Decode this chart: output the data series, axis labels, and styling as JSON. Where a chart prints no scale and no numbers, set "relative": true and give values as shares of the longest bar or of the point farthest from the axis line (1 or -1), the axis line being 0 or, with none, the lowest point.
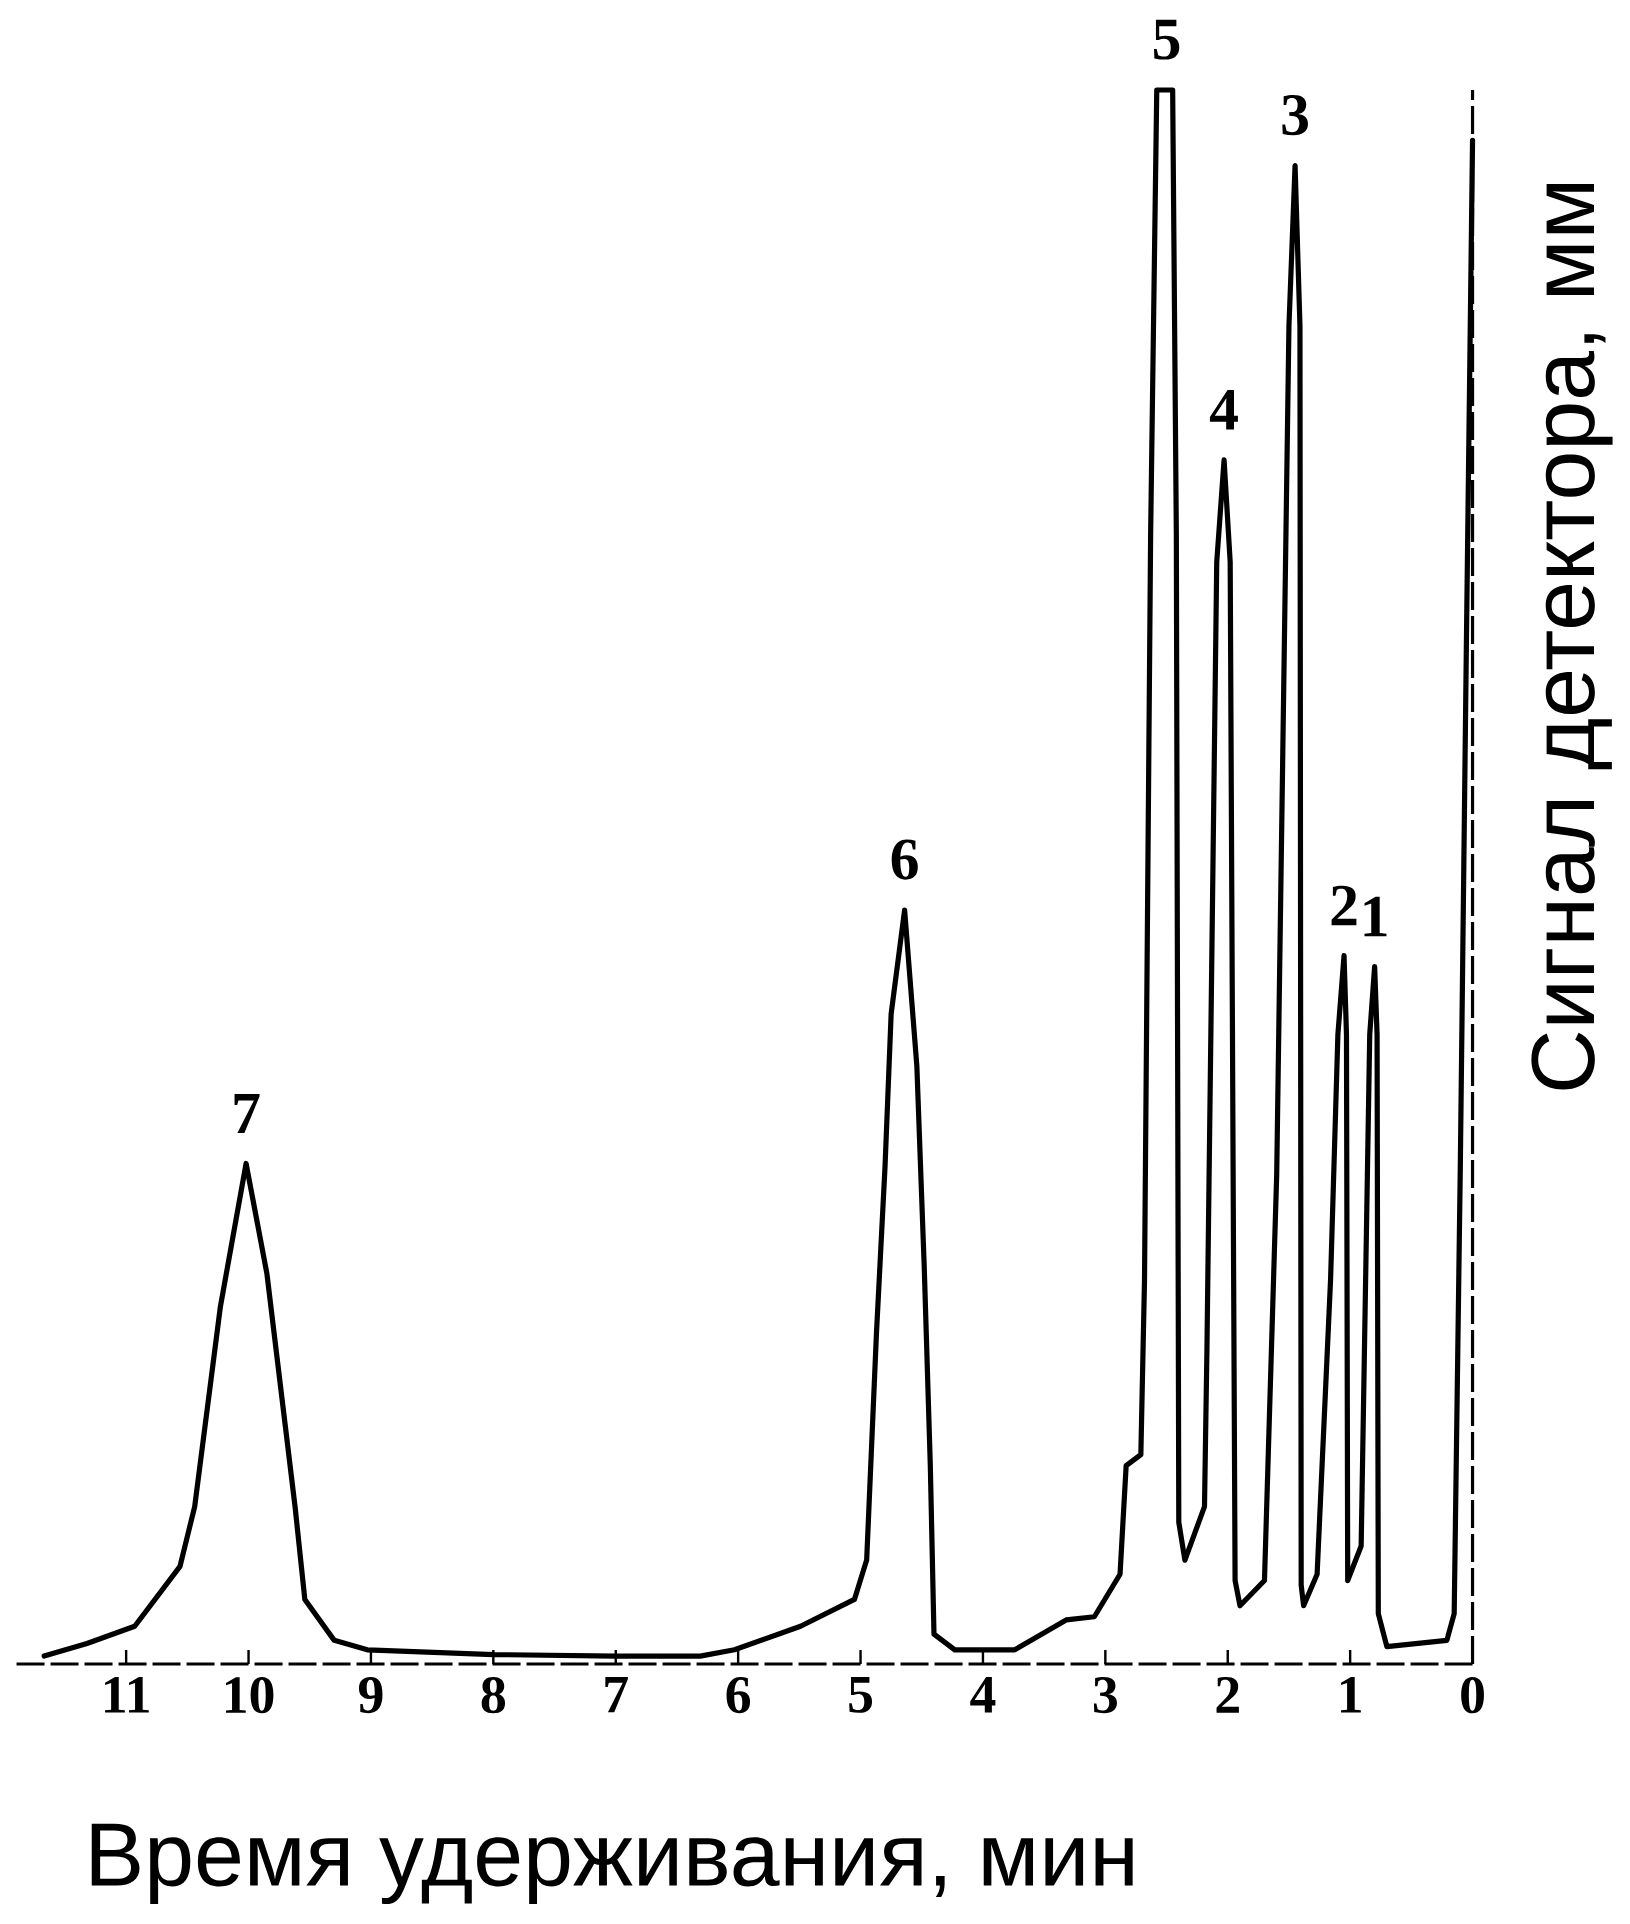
{
  "chart_data": {
    "type": "line",
    "xlabel": "Время удерживания, мин",
    "ylabel": "Сигнал детектора, мм",
    "relative": true,
    "color": "#000000",
    "line_style": "solid",
    "x": [
      11.67,
      11.32,
      10.93,
      10.56,
      10.44,
      10.23,
      10.02,
      9.85,
      9.62,
      9.54,
      9.3,
      9.03,
      8.0,
      7.0,
      6.31,
      6.03,
      5.49,
      5.05,
      4.95,
      4.87,
      4.8,
      4.75,
      4.64,
      4.54,
      4.48,
      4.43,
      4.4,
      4.23,
      3.74,
      3.32,
      3.09,
      2.88,
      2.83,
      2.71,
      2.68,
      2.63,
      2.58,
      2.45,
      2.42,
      2.4,
      2.35,
      2.19,
      2.17,
      2.09,
      2.03,
      1.98,
      1.94,
      1.9,
      1.7,
      1.6,
      1.5,
      1.45,
      1.41,
      1.4,
      1.38,
      1.27,
      1.16,
      1.1,
      1.05,
      1.03,
      1.02,
      0.91,
      0.84,
      0.8,
      0.78,
      0.77,
      0.7,
      0.21,
      0.15,
      0.1,
      0.05,
      0.0
    ],
    "values": [
      0.005,
      0.013,
      0.024,
      0.062,
      0.1,
      0.227,
      0.318,
      0.248,
      0.1,
      0.041,
      0.015,
      0.009,
      0.006,
      0.005,
      0.005,
      0.009,
      0.024,
      0.041,
      0.066,
      0.21,
      0.316,
      0.413,
      0.479,
      0.38,
      0.253,
      0.126,
      0.019,
      0.009,
      0.009,
      0.028,
      0.03,
      0.057,
      0.126,
      0.133,
      0.244,
      0.718,
      1.0,
      1.0,
      0.718,
      0.09,
      0.066,
      0.1,
      0.2,
      0.7,
      0.765,
      0.7,
      0.053,
      0.037,
      0.053,
      0.311,
      0.85,
      0.952,
      0.85,
      0.05,
      0.037,
      0.057,
      0.244,
      0.4,
      0.45,
      0.4,
      0.053,
      0.075,
      0.4,
      0.443,
      0.4,
      0.032,
      0.011,
      0.015,
      0.032,
      0.316,
      0.65,
      0.968
    ],
    "xlim": [
      11.9,
      0
    ],
    "xticks": [
      0,
      1,
      2,
      3,
      4,
      5,
      6,
      7,
      8,
      9,
      10,
      11
    ],
    "annotations": [
      {
        "text": "7",
        "x": 10.02,
        "y": 0.318
      },
      {
        "text": "6",
        "x": 4.64,
        "y": 0.479
      },
      {
        "text": "5",
        "x": 2.5,
        "y": 1.0
      },
      {
        "text": "4",
        "x": 2.03,
        "y": 0.765
      },
      {
        "text": "3",
        "x": 1.45,
        "y": 0.952
      },
      {
        "text": "2",
        "x": 1.05,
        "y": 0.45
      },
      {
        "text": "1",
        "x": 0.8,
        "y": 0.443
      }
    ]
  }
}
